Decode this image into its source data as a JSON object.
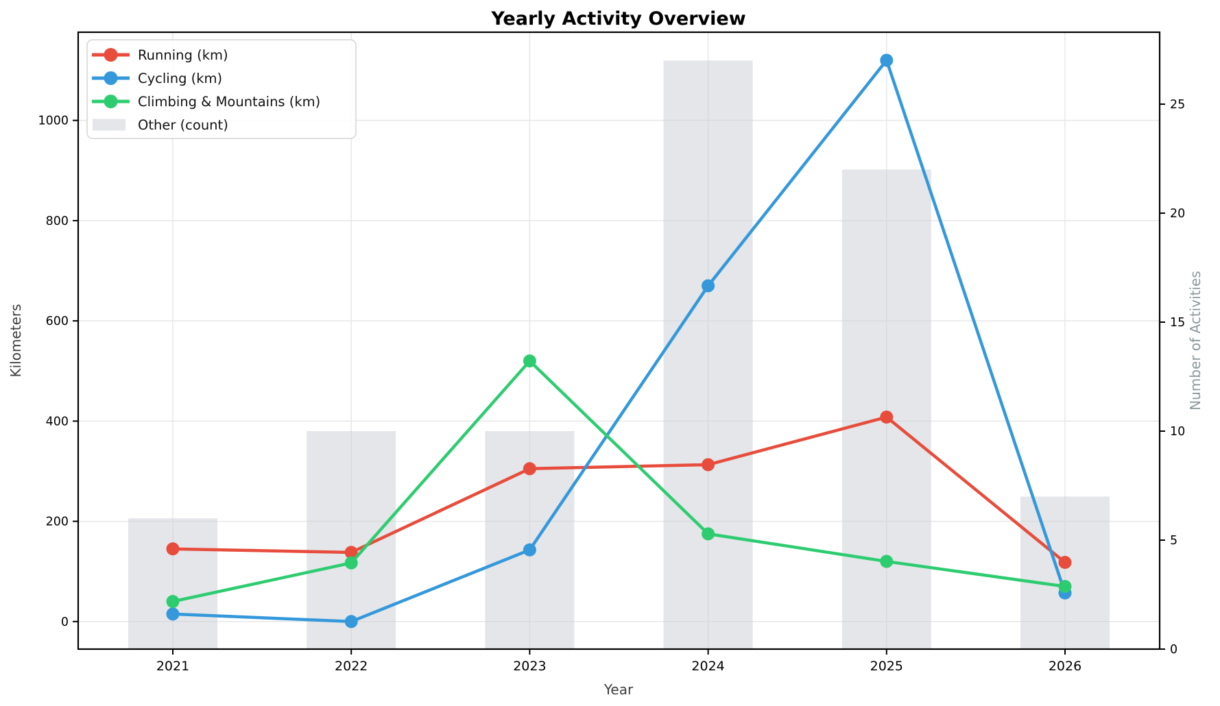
{
  "chart_data": {
    "type": "line+bar combo",
    "title": "Yearly Activity Overview",
    "xlabel": "Year",
    "categories": [
      "2021",
      "2022",
      "2023",
      "2024",
      "2025",
      "2026"
    ],
    "series": [
      {
        "name": "Running (km)",
        "type": "line",
        "axis": "left",
        "color": "#e74c3c",
        "values": [
          145,
          138,
          305,
          313,
          408,
          118
        ]
      },
      {
        "name": "Cycling (km)",
        "type": "line",
        "axis": "left",
        "color": "#3498db",
        "values": [
          15,
          0,
          143,
          670,
          1120,
          57
        ]
      },
      {
        "name": "Climbing & Mountains (km)",
        "type": "line",
        "axis": "left",
        "color": "#2ecc71",
        "values": [
          40,
          117,
          520,
          175,
          120,
          70
        ]
      },
      {
        "name": "Other (count)",
        "type": "bar",
        "axis": "right",
        "color": "#c9ced3",
        "opacity": 0.5,
        "values": [
          6,
          10,
          10,
          27,
          22,
          7
        ]
      }
    ],
    "left_axis": {
      "label": "Kilometers",
      "ticks": [
        0,
        200,
        400,
        600,
        800,
        1000
      ],
      "range": [
        -55,
        1176
      ]
    },
    "right_axis": {
      "label": "Number of Activities",
      "ticks": [
        0,
        5,
        10,
        15,
        20,
        25
      ],
      "range": [
        0,
        28.3
      ]
    },
    "legend_position": "upper left",
    "grid": true,
    "style": {
      "grid_color": "#e7e7e7",
      "spine_color": "#000000",
      "tick_label_color": "#000000",
      "right_label_color": "#8a989b",
      "legend_border_color": "#d0d0d0"
    }
  }
}
